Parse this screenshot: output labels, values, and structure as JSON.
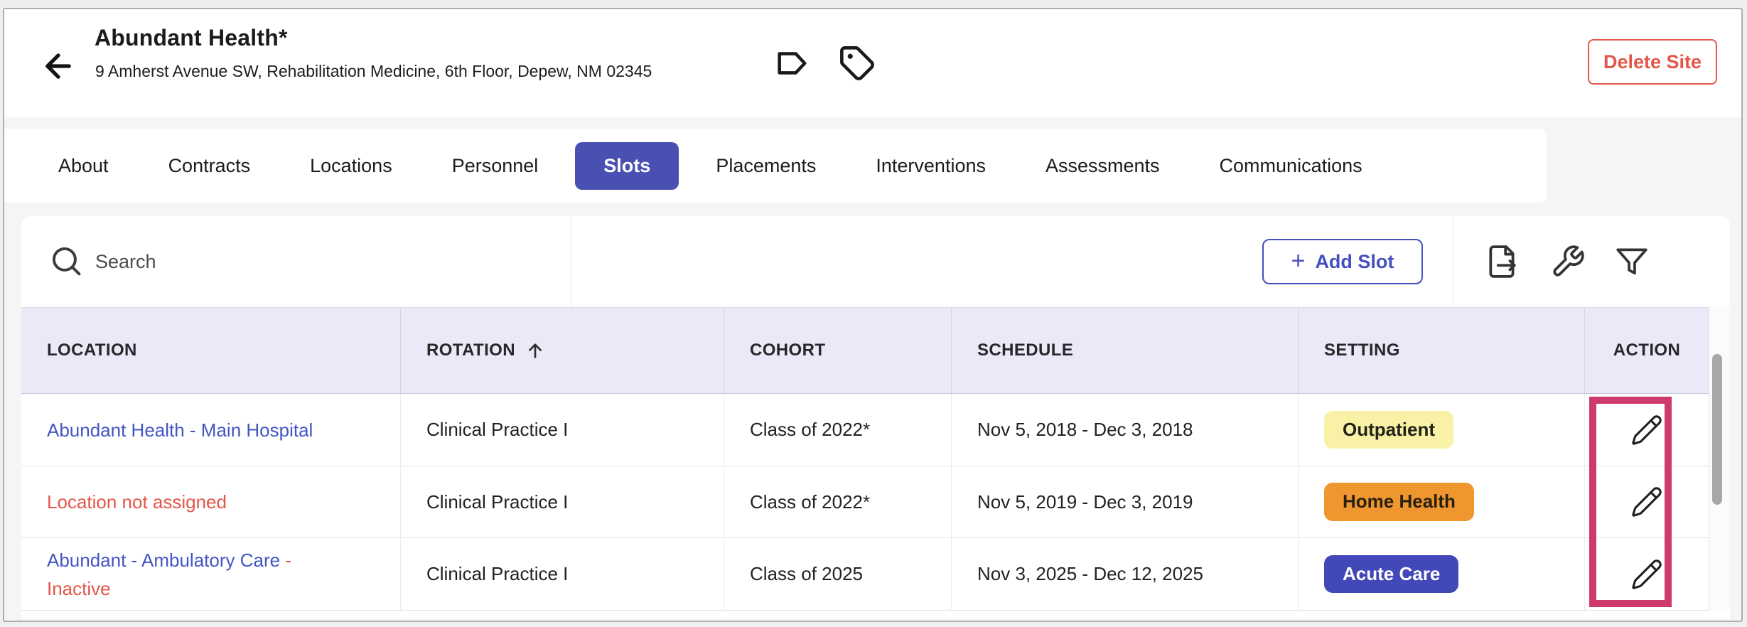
{
  "header": {
    "title": "Abundant Health*",
    "address": "9 Amherst Avenue SW, Rehabilitation Medicine, 6th Floor, Depew, NM 02345",
    "delete_button_label": "Delete Site",
    "icons": [
      "back-arrow-icon",
      "label-icon",
      "tag-icon"
    ]
  },
  "tabs": [
    {
      "label": "About",
      "active": false
    },
    {
      "label": "Contracts",
      "active": false
    },
    {
      "label": "Locations",
      "active": false
    },
    {
      "label": "Personnel",
      "active": false
    },
    {
      "label": "Slots",
      "active": true
    },
    {
      "label": "Placements",
      "active": false
    },
    {
      "label": "Interventions",
      "active": false
    },
    {
      "label": "Assessments",
      "active": false
    },
    {
      "label": "Communications",
      "active": false
    }
  ],
  "toolbar": {
    "search_placeholder": "Search",
    "search_value": "",
    "add_slot_plus": "+",
    "add_slot_label": "Add Slot",
    "icons": [
      "export-icon",
      "wrench-icon",
      "filter-icon"
    ]
  },
  "table": {
    "columns": [
      {
        "key": "location",
        "label": "LOCATION",
        "sorted": false
      },
      {
        "key": "rotation",
        "label": "ROTATION",
        "sorted": true,
        "sort_dir": "asc"
      },
      {
        "key": "cohort",
        "label": "COHORT",
        "sorted": false
      },
      {
        "key": "schedule",
        "label": "SCHEDULE",
        "sorted": false
      },
      {
        "key": "setting",
        "label": "SETTING",
        "sorted": false
      },
      {
        "key": "action",
        "label": "ACTION",
        "sorted": false
      }
    ],
    "rows": [
      {
        "location": [
          {
            "text": "Abundant Health - Main Hospital",
            "variant": "link"
          }
        ],
        "rotation": "Clinical Practice I",
        "cohort": "Class of 2022*",
        "schedule": "Nov 5, 2018 - Dec 3, 2018",
        "setting": {
          "label": "Outpatient",
          "bg": "#f8f1a6",
          "text_color": "#222218"
        }
      },
      {
        "location": [
          {
            "text": "Location not assigned",
            "variant": "error"
          }
        ],
        "rotation": "Clinical Practice I",
        "cohort": "Class of 2022*",
        "schedule": "Nov 5, 2019 - Dec 3, 2019",
        "setting": {
          "label": "Home Health",
          "bg": "#f0962e",
          "text_color": "#27200f"
        }
      },
      {
        "location": [
          {
            "text": "Abundant - Ambulatory Care",
            "variant": "link"
          },
          {
            "text": " - Inactive",
            "variant": "error"
          }
        ],
        "rotation": "Clinical Practice I",
        "cohort": "Class of 2025",
        "schedule": "Nov 3, 2025 - Dec 12, 2025",
        "setting": {
          "label": "Acute Care",
          "bg": "#4348b8",
          "text_color": "#ffffff"
        }
      }
    ]
  },
  "colors": {
    "accent_indigo": "#4a50b2",
    "link_blue": "#4355c4",
    "error_red": "#e4564a",
    "highlight_pink": "#ce3a6e",
    "table_header_bg": "#e9e9f7"
  }
}
